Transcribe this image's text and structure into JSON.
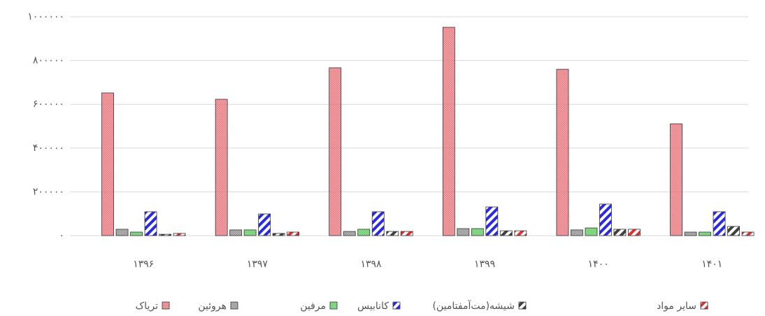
{
  "chart_data": {
    "type": "bar",
    "categories": [
      "۱۳۹۶",
      "۱۳۹۷",
      "۱۳۹۸",
      "۱۳۹۹",
      "۱۴۰۰",
      "۱۴۰۱"
    ],
    "series": [
      {
        "name": "تریاک",
        "color": "#e8737a",
        "pattern": "check",
        "values": [
          652000,
          623000,
          767000,
          952000,
          760000,
          511000
        ]
      },
      {
        "name": "هروئین",
        "color": "#8c8c8c",
        "pattern": "check",
        "values": [
          29000,
          26000,
          19000,
          32000,
          26000,
          16000
        ]
      },
      {
        "name": "مرفین",
        "color": "#5cc85c",
        "pattern": "check",
        "values": [
          16000,
          26000,
          29000,
          32000,
          35000,
          16000
        ]
      },
      {
        "name": "کانابیس",
        "color": "#2a2ae0",
        "pattern": "stripe",
        "values": [
          109000,
          99000,
          109000,
          131000,
          144000,
          109000
        ]
      },
      {
        "name": "شیشه(مت‌آمفتامین)",
        "color": "#404040",
        "pattern": "stripe",
        "values": [
          6000,
          10000,
          19000,
          22000,
          29000,
          42000
        ]
      },
      {
        "name": "سایر مواد",
        "color": "#e03030",
        "pattern": "stripe",
        "values": [
          10000,
          16000,
          19000,
          22000,
          29000,
          16000
        ]
      }
    ],
    "ylim": [
      0,
      1000000
    ],
    "yticks": [
      {
        "value": 0,
        "label": "۰"
      },
      {
        "value": 200000,
        "label": "۲۰۰۰۰۰"
      },
      {
        "value": 400000,
        "label": "۴۰۰۰۰۰"
      },
      {
        "value": 600000,
        "label": "۶۰۰۰۰۰"
      },
      {
        "value": 800000,
        "label": "۸۰۰۰۰۰"
      },
      {
        "value": 1000000,
        "label": "۱۰۰۰۰۰۰"
      }
    ],
    "grid": true,
    "legend": "bottom"
  }
}
